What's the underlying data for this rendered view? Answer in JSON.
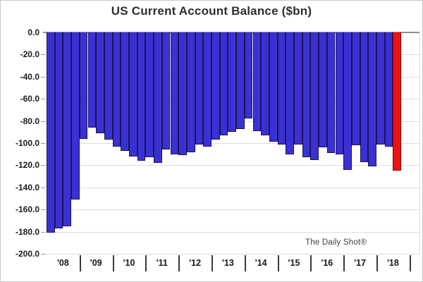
{
  "title": "US Current Account Balance ($bn)",
  "watermark": "The Daily Shot®",
  "colors": {
    "bar_fill": "#3a31d4",
    "bar_border": "#1c1454",
    "highlight_fill": "#ee1111",
    "highlight_border": "#7d0606",
    "gridline": "#dcdcdc",
    "zero_line": "#8f8f8f",
    "label_text": "#1b1b1b"
  },
  "y_axis": {
    "tick_labels": [
      "0.0",
      "-20.0",
      "-40.0",
      "-60.0",
      "-80.0",
      "-100.0",
      "-120.0",
      "-140.0",
      "-160.0",
      "-180.0",
      "-200.0"
    ],
    "min": -200,
    "max": 0,
    "step": -20
  },
  "x_axis": {
    "year_labels": [
      "'08",
      "'09",
      "'10",
      "'11",
      "'12",
      "'13",
      "'14",
      "'15",
      "'16",
      "'17",
      "'18"
    ],
    "bars_per_year": 4
  },
  "chart_data": {
    "type": "bar",
    "title": "US Current Account Balance ($bn)",
    "xlabel": "",
    "ylabel": "",
    "ylim": [
      -200,
      0
    ],
    "grid": true,
    "legend": "none",
    "x": [
      "2008Q1",
      "2008Q2",
      "2008Q3",
      "2008Q4",
      "2009Q1",
      "2009Q2",
      "2009Q3",
      "2009Q4",
      "2010Q1",
      "2010Q2",
      "2010Q3",
      "2010Q4",
      "2011Q1",
      "2011Q2",
      "2011Q3",
      "2011Q4",
      "2012Q1",
      "2012Q2",
      "2012Q3",
      "2012Q4",
      "2013Q1",
      "2013Q2",
      "2013Q3",
      "2013Q4",
      "2014Q1",
      "2014Q2",
      "2014Q3",
      "2014Q4",
      "2015Q1",
      "2015Q2",
      "2015Q3",
      "2015Q4",
      "2016Q1",
      "2016Q2",
      "2016Q3",
      "2016Q4",
      "2017Q1",
      "2017Q2",
      "2017Q3",
      "2017Q4",
      "2018Q1",
      "2018Q2",
      "2018Q3"
    ],
    "values": [
      -181,
      -177,
      -175,
      -151,
      -96,
      -86,
      -91,
      -97,
      -103,
      -107,
      -112,
      -116,
      -113,
      -118,
      -106,
      -110,
      -111,
      -108,
      -101,
      -103,
      -97,
      -93,
      -90,
      -87,
      -78,
      -89,
      -93,
      -99,
      -101,
      -110,
      -101,
      -113,
      -115,
      -104,
      -109,
      -110,
      -124,
      -102,
      -117,
      -121,
      -101,
      -103,
      -125
    ],
    "highlight_last_bar": true,
    "highlight_index": 42
  }
}
